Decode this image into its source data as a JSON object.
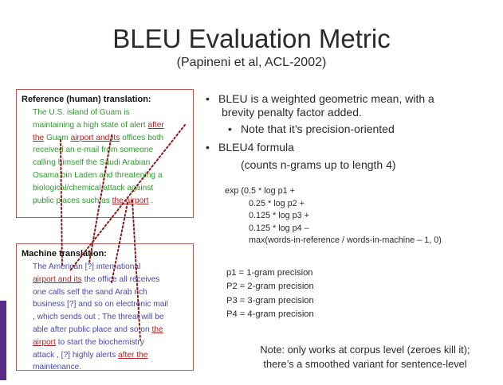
{
  "slide": {
    "title": "BLEU Evaluation Metric",
    "subtitle": "(Papineni et al, ACL-2002)"
  },
  "reference_box": {
    "heading": "Reference (human) translation:",
    "lines": [
      [
        {
          "t": "The U.S. island of Guam is",
          "hl": false
        }
      ],
      [
        {
          "t": "maintaining a high state of alert ",
          "hl": false
        },
        {
          "t": "after",
          "hl": true
        }
      ],
      [
        {
          "t": "the",
          "hl": true
        },
        {
          "t": " Guam ",
          "hl": false
        },
        {
          "t": "airport and its",
          "hl": true
        },
        {
          "t": " offices both",
          "hl": false
        }
      ],
      [
        {
          "t": "received an e-mail from someone",
          "hl": false
        }
      ],
      [
        {
          "t": "calling himself the Saudi Arabian",
          "hl": false
        }
      ],
      [
        {
          "t": "Osama bin Laden and threatening a",
          "hl": false
        }
      ],
      [
        {
          "t": "biological/chemical attack against",
          "hl": false
        }
      ],
      [
        {
          "t": "public places such as ",
          "hl": false
        },
        {
          "t": "the airport",
          "hl": true
        },
        {
          "t": " .",
          "hl": false
        }
      ]
    ]
  },
  "machine_box": {
    "heading": "Machine translation:",
    "lines": [
      [
        {
          "t": "The American [?] international",
          "hl": false
        }
      ],
      [
        {
          "t": "airport and its",
          "hl": true
        },
        {
          "t": " the office all receives",
          "hl": false
        }
      ],
      [
        {
          "t": "one calls self the sand Arab rich",
          "hl": false
        }
      ],
      [
        {
          "t": "business [?] and so on electronic mail",
          "hl": false
        }
      ],
      [
        {
          "t": ", which sends out ;  The threat will be",
          "hl": false
        }
      ],
      [
        {
          "t": "able after public place and so on ",
          "hl": false
        },
        {
          "t": "the",
          "hl": true
        }
      ],
      [
        {
          "t": "airport",
          "hl": true
        },
        {
          "t": " to start the biochemistry",
          "hl": false
        }
      ],
      [
        {
          "t": "attack , [?] highly alerts ",
          "hl": false
        },
        {
          "t": "after the",
          "hl": true
        }
      ],
      [
        {
          "t": "maintenance.",
          "hl": false
        }
      ]
    ]
  },
  "bullets": {
    "b1_line1": "BLEU is a weighted geometric mean, with a",
    "b1_line2": "brevity penalty factor added.",
    "sub": "Note that it’s precision-oriented",
    "b2": "BLEU4 formula",
    "b2_note": "(counts n-grams up to length 4)",
    "bullet_char": "•"
  },
  "formula": {
    "lines": [
      "exp (0.5 * log p1 +",
      "0.25 * log p2 +",
      "0.125 * log p3 +",
      "0.125 * log p4 –",
      "max(words-in-reference / words-in-machine – 1, 0)"
    ]
  },
  "definitions": [
    "p1 = 1-gram precision",
    "P2 = 2-gram precision",
    "P3 = 3-gram precision",
    "P4 = 4-gram precision"
  ],
  "note": {
    "line1": "Note: only works at corpus level (zeroes kill it);",
    "line2": "there’s a smoothed variant for sentence-level"
  },
  "colors": {
    "box_border": "#b35a5a",
    "match_highlight": "#b22222",
    "reference_text": "#2e9a2e",
    "machine_text": "#4848a8",
    "accent_bar": "#5b2a86"
  }
}
